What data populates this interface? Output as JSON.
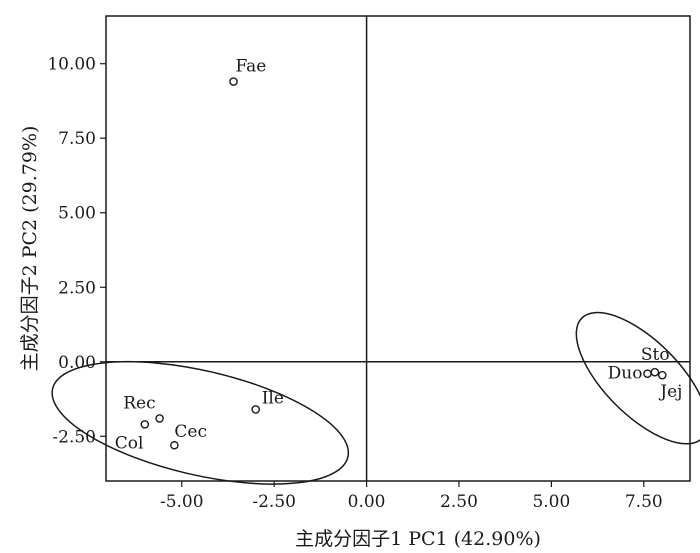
{
  "chart_data": {
    "type": "scatter",
    "title": "",
    "xlabel": "主成分因子1  PC1 (42.90%)",
    "ylabel": "主成分因子2  PC2 (29.79%)",
    "xlim": [
      -7.05,
      8.75
    ],
    "ylim": [
      -4.0,
      11.6
    ],
    "x_ticks": [
      "-5.00",
      "-2.50",
      "0.00",
      "2.50",
      "5.00",
      "7.50"
    ],
    "y_ticks": [
      "-2.50",
      "0.00",
      "2.50",
      "5.00",
      "7.50",
      "10.00"
    ],
    "grid": false,
    "reference_lines": {
      "x": 0,
      "y": 0
    },
    "points": [
      {
        "label": "Fae",
        "x": -3.6,
        "y": 9.4
      },
      {
        "label": "Ile",
        "x": -3.0,
        "y": -1.6
      },
      {
        "label": "Rec",
        "x": -5.6,
        "y": -1.9
      },
      {
        "label": "Col",
        "x": -6.0,
        "y": -2.1
      },
      {
        "label": "Cec",
        "x": -5.2,
        "y": -2.8
      },
      {
        "label": "Sto",
        "x": 7.8,
        "y": -0.35
      },
      {
        "label": "Duo",
        "x": 7.6,
        "y": -0.4
      },
      {
        "label": "Jej",
        "x": 8.0,
        "y": -0.45
      }
    ],
    "groups": [
      {
        "members": [
          "Rec",
          "Col",
          "Cec",
          "Ile"
        ],
        "center": [
          -4.5,
          -2.05
        ],
        "radii": [
          4.1,
          1.75
        ],
        "rotation_deg": 13
      },
      {
        "members": [
          "Sto",
          "Duo",
          "Jej"
        ],
        "center": [
          7.45,
          -0.55
        ],
        "radii": [
          2.3,
          1.25
        ],
        "rotation_deg": 45
      }
    ]
  }
}
